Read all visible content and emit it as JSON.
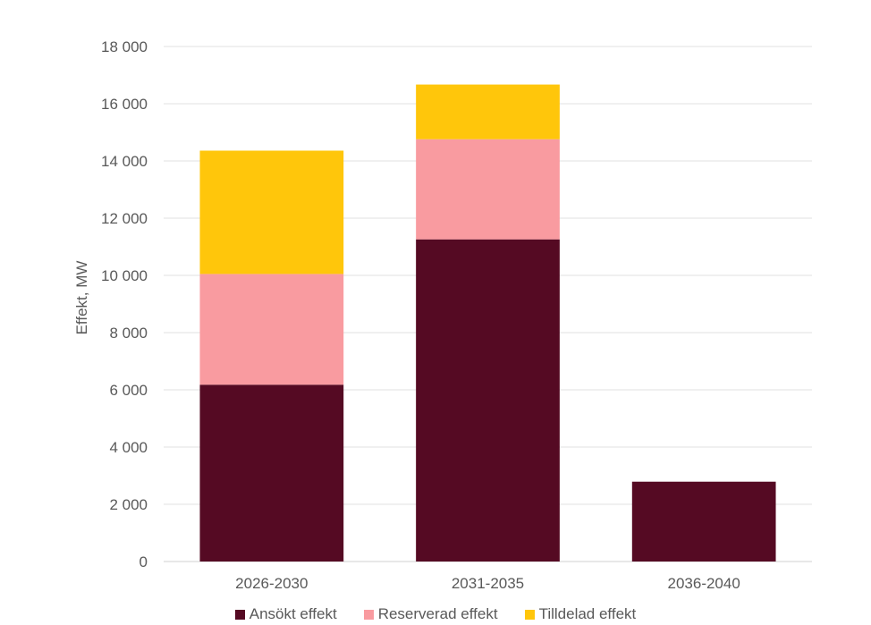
{
  "chart_data": {
    "type": "bar",
    "stacked": true,
    "categories": [
      "2026-2030",
      "2031-2035",
      "2036-2040"
    ],
    "series": [
      {
        "name": "Ansökt effekt",
        "color": "#550A23",
        "values": [
          6180,
          11260,
          2790
        ]
      },
      {
        "name": "Reserverad effekt",
        "color": "#F99BA0",
        "values": [
          3870,
          3500,
          0
        ]
      },
      {
        "name": "Tilldelad effekt",
        "color": "#FFC60B",
        "values": [
          4310,
          1910,
          0
        ]
      }
    ],
    "title": "",
    "xlabel": "",
    "ylabel": "Effekt, MW",
    "ylim": [
      0,
      18000
    ],
    "yticks": [
      0,
      2000,
      4000,
      6000,
      8000,
      10000,
      12000,
      14000,
      16000,
      18000
    ],
    "ytick_labels": [
      "0",
      "2 000",
      "4 000",
      "6 000",
      "8 000",
      "10 000",
      "12 000",
      "14 000",
      "16 000",
      "18 000"
    ],
    "grid": true,
    "legend_position": "bottom"
  }
}
